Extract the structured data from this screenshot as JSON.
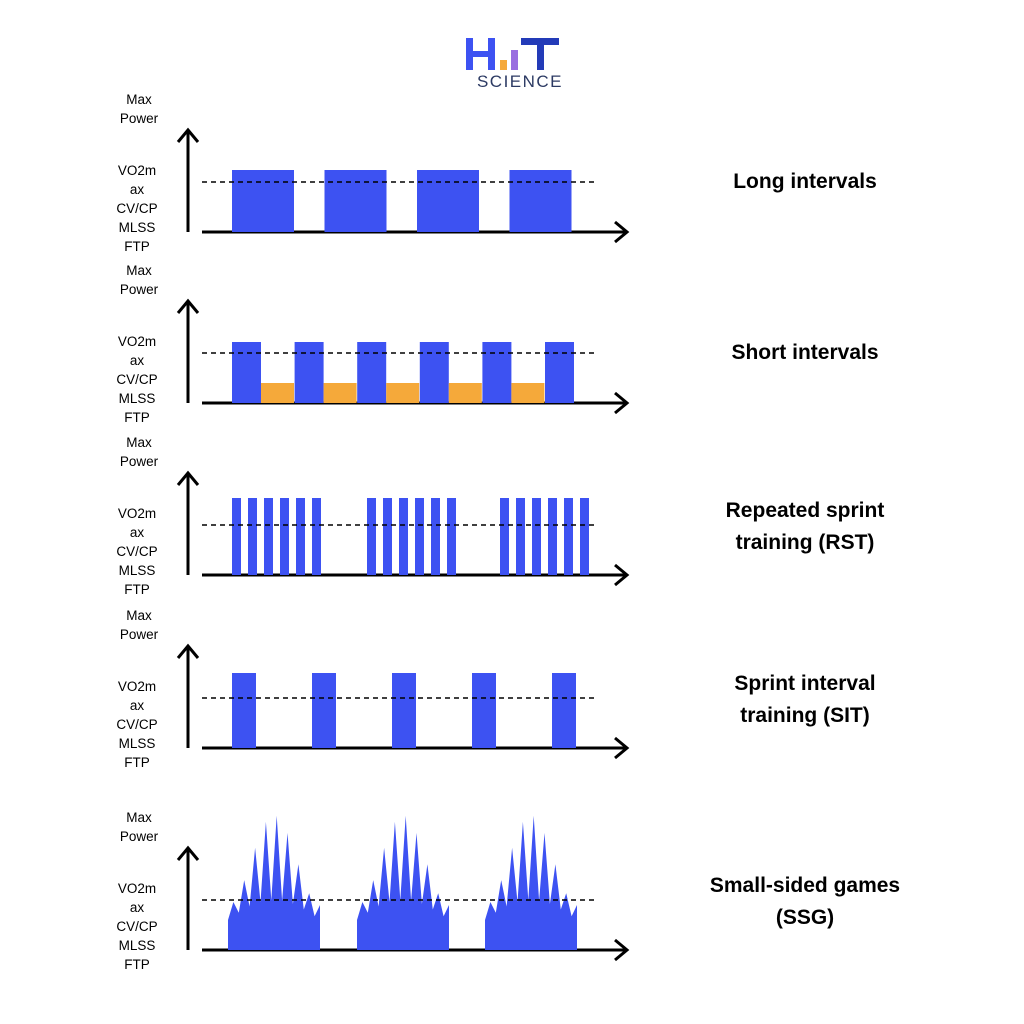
{
  "logo": {
    "wordmark": "HIIT",
    "subtitle": "SCIENCE",
    "colors": {
      "h": "#3d52f2",
      "bar1": "#f5a93a",
      "bar2": "#9a6ee0",
      "t": "#233bb8"
    }
  },
  "axis_labels": {
    "max_power": [
      "Max",
      "Power"
    ],
    "lower": [
      "VO2m",
      "ax",
      "CV/CP",
      "MLSS",
      "FTP"
    ]
  },
  "colors": {
    "work": "#3d52f2",
    "recovery": "#f5a93a",
    "axis": "#000000"
  },
  "panels": [
    {
      "title": [
        "Long intervals"
      ],
      "type": "long_intervals",
      "work_bouts": 4,
      "recovery_bouts": 0
    },
    {
      "title": [
        "Short intervals"
      ],
      "type": "short_intervals",
      "work_bouts": 6,
      "recovery_bouts": 5
    },
    {
      "title": [
        "Repeated sprint",
        "training (RST)"
      ],
      "type": "repeated_sprints",
      "sets": 3,
      "sprints_per_set": 6
    },
    {
      "title": [
        "Sprint interval",
        "training (SIT)"
      ],
      "type": "sprint_intervals",
      "work_bouts": 5
    },
    {
      "title": [
        "Small-sided games",
        "(SSG)"
      ],
      "type": "small_sided_games",
      "games": 3
    }
  ]
}
